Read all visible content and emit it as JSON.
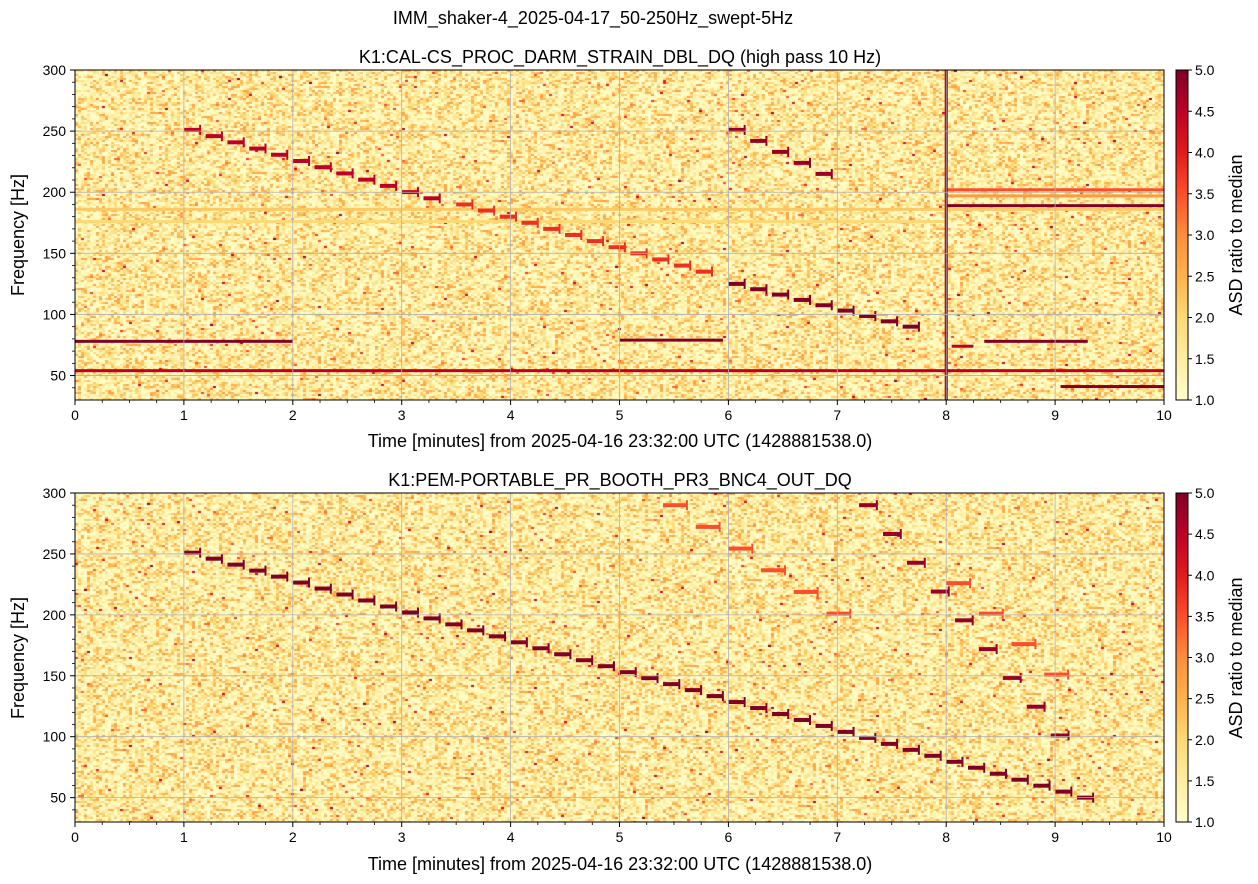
{
  "figure": {
    "suptitle": "IMM_shaker-4_2025-04-17_50-250Hz_swept-5Hz"
  },
  "colors": {
    "background": "#ffffe3",
    "grid": "#b0b0b0",
    "line": "#800026",
    "colormap": [
      "#ffffcc",
      "#ffeda0",
      "#fed976",
      "#feb24c",
      "#fd8d3c",
      "#fc4e2a",
      "#e31a1c",
      "#bd0026",
      "#800026"
    ]
  },
  "chart_data": [
    {
      "type": "heatmap",
      "title": "K1:CAL-CS_PROC_DARM_STRAIN_DBL_DQ (high pass 10 Hz)",
      "xlabel": "Time [minutes] from 2025-04-16 23:32:00 UTC (1428881538.0)",
      "ylabel": "Frequency [Hz]",
      "xlim": [
        0,
        10
      ],
      "ylim": [
        30,
        300
      ],
      "xticks": [
        "0",
        "1",
        "2",
        "3",
        "4",
        "5",
        "6",
        "7",
        "8",
        "9",
        "10"
      ],
      "yticks": [
        "50",
        "100",
        "150",
        "200",
        "250",
        "300"
      ],
      "grid": true,
      "colorbar": {
        "label": "ASD ratio to median",
        "range": [
          1.0,
          5.0
        ],
        "ticks": [
          "1.0",
          "1.5",
          "2.0",
          "2.5",
          "3.0",
          "3.5",
          "4.0",
          "4.5",
          "5.0"
        ]
      },
      "features": {
        "horizontal_lines": [
          {
            "f": 78,
            "t0": 0,
            "t1": 2.0,
            "intensity": 5.0
          },
          {
            "f": 54,
            "t0": 0,
            "t1": 10,
            "intensity": 4.5
          },
          {
            "f": 79,
            "t0": 5.0,
            "t1": 5.95,
            "intensity": 5.0
          },
          {
            "f": 189,
            "t0": 8.0,
            "t1": 10,
            "intensity": 5.0
          },
          {
            "f": 78,
            "t0": 8.35,
            "t1": 9.3,
            "intensity": 5.0
          },
          {
            "f": 74,
            "t0": 8.05,
            "t1": 8.25,
            "intensity": 4.5
          },
          {
            "f": 41,
            "t0": 9.05,
            "t1": 10,
            "intensity": 5.0
          },
          {
            "f": 186,
            "t0": 0,
            "t1": 10,
            "intensity": 2.2
          },
          {
            "f": 176,
            "t0": 0,
            "t1": 8.0,
            "intensity": 2.0
          },
          {
            "f": 202,
            "t0": 8.0,
            "t1": 10,
            "intensity": 3.5
          },
          {
            "f": 197,
            "t0": 8.0,
            "t1": 10,
            "intensity": 2.8
          }
        ],
        "vertical_lines": [
          {
            "t": 8.0,
            "f0": 30,
            "f1": 300,
            "intensity": 5.0
          }
        ],
        "sweeps": [
          {
            "t0": 1.0,
            "f0": 251,
            "t1": 3.45,
            "f1": 195,
            "intensity": 4.5,
            "dt": 0.2
          },
          {
            "t0": 3.5,
            "f0": 190,
            "t1": 5.9,
            "f1": 135,
            "intensity": 3.8,
            "dt": 0.2
          },
          {
            "t0": 6.0,
            "f0": 125,
            "t1": 7.7,
            "f1": 90,
            "intensity": 5.0,
            "dt": 0.2
          },
          {
            "t0": 6.0,
            "f0": 251,
            "t1": 6.9,
            "f1": 215,
            "intensity": 4.8,
            "dt": 0.2
          }
        ]
      }
    },
    {
      "type": "heatmap",
      "title": "K1:PEM-PORTABLE_PR_BOOTH_PR3_BNC4_OUT_DQ",
      "xlabel": "Time [minutes] from 2025-04-16 23:32:00 UTC (1428881538.0)",
      "ylabel": "Frequency [Hz]",
      "xlim": [
        0,
        10
      ],
      "ylim": [
        30,
        300
      ],
      "xticks": [
        "0",
        "1",
        "2",
        "3",
        "4",
        "5",
        "6",
        "7",
        "8",
        "9",
        "10"
      ],
      "yticks": [
        "50",
        "100",
        "150",
        "200",
        "250",
        "300"
      ],
      "grid": true,
      "colorbar": {
        "label": "ASD ratio to median",
        "range": [
          1.0,
          5.0
        ],
        "ticks": [
          "1.0",
          "1.5",
          "2.0",
          "2.5",
          "3.0",
          "3.5",
          "4.0",
          "4.5",
          "5.0"
        ]
      },
      "features": {
        "horizontal_lines": [],
        "vertical_lines": [],
        "sweeps": [
          {
            "t0": 1.0,
            "f0": 251,
            "t1": 9.3,
            "f1": 50,
            "intensity": 5.0,
            "dt": 0.2
          },
          {
            "t0": 7.2,
            "f0": 290,
            "t1": 9.2,
            "f1": 101,
            "intensity": 4.8,
            "dt": 0.22
          },
          {
            "t0": 5.4,
            "f0": 290,
            "t1": 7.2,
            "f1": 201,
            "intensity": 3.5,
            "dt": 0.3
          },
          {
            "t0": 8.0,
            "f0": 226,
            "t1": 9.2,
            "f1": 151,
            "intensity": 3.5,
            "dt": 0.3
          }
        ]
      }
    }
  ]
}
